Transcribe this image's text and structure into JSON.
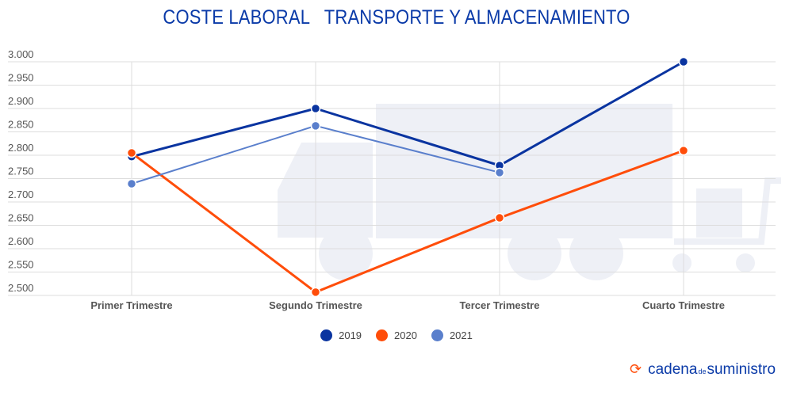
{
  "title": "COSTE LABORAL   TRANSPORTE Y ALMACENAMIENTO",
  "chart_data": {
    "type": "line",
    "title": "COSTE LABORAL   TRANSPORTE Y ALMACENAMIENTO",
    "categories": [
      "Primer Trimestre",
      "Segundo Trimestre",
      "Tercer Trimestre",
      "Cuarto Trimestre"
    ],
    "ylim": [
      2500,
      3000
    ],
    "yticks": [
      "2.500",
      "2.550",
      "2.600",
      "2.650",
      "2.700",
      "2.750",
      "2.800",
      "2.850",
      "2.900",
      "2.950",
      "3.000"
    ],
    "grid": true,
    "legend_position": "bottom",
    "series": [
      {
        "name": "2019",
        "color": "#0a34a0",
        "values": [
          2797,
          2900,
          2778,
          3000
        ]
      },
      {
        "name": "2020",
        "color": "#ff4d0a",
        "values": [
          2805,
          2507,
          2666,
          2810
        ]
      },
      {
        "name": "2021",
        "color": "#5a7fcc",
        "values": [
          2739,
          2863,
          2763,
          null
        ]
      }
    ]
  },
  "logo": {
    "part1": "cadena",
    "part2": "de",
    "part3": "suministro"
  }
}
